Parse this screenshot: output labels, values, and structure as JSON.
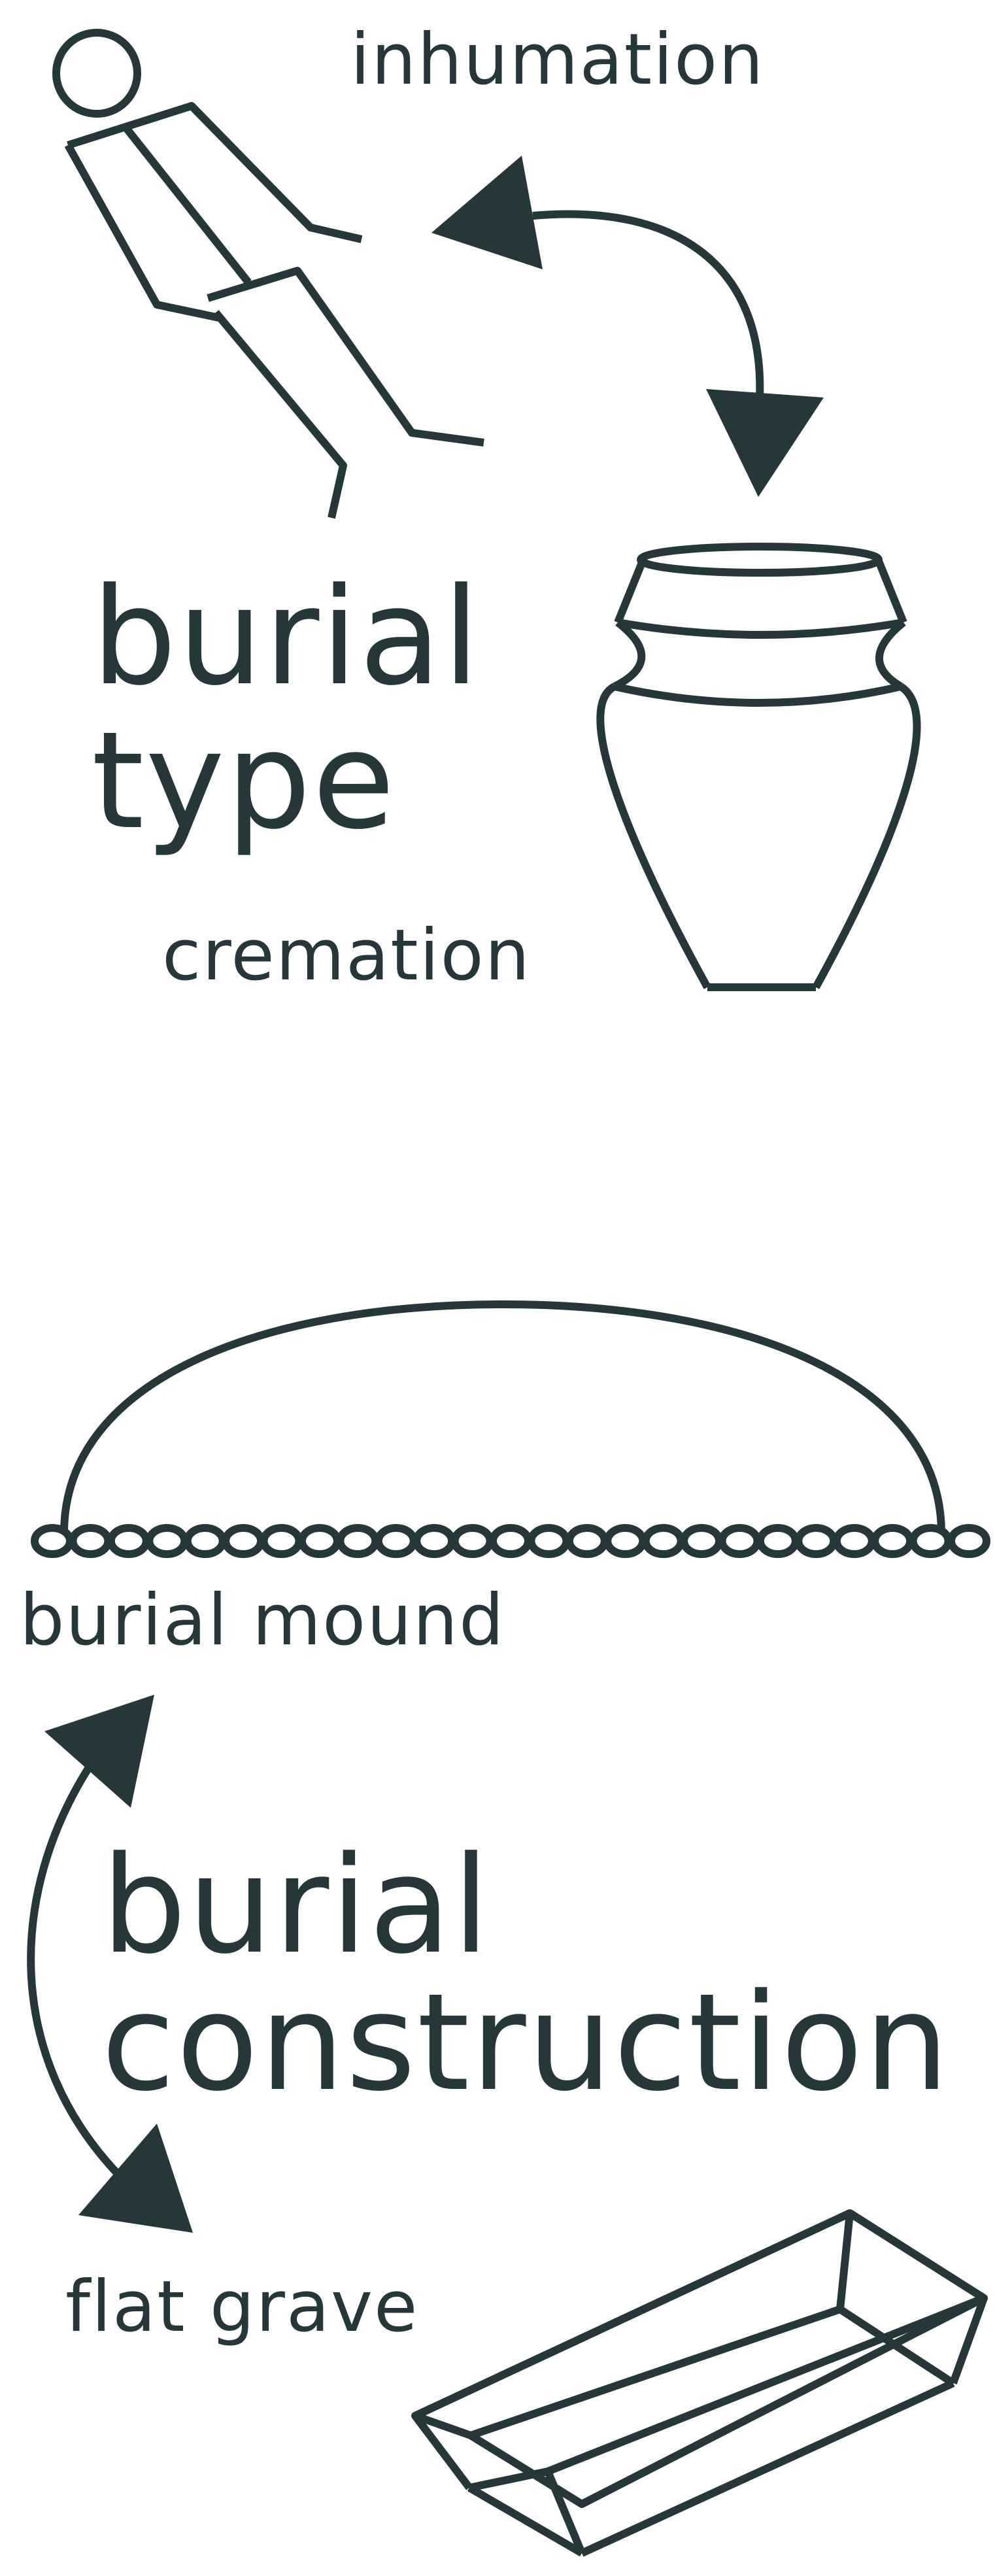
{
  "colors": {
    "ink": "#253739",
    "background": "#ffffff"
  },
  "burial_type": {
    "heading_line1": "burial",
    "heading_line2": "type",
    "option_inhumation": "inhumation",
    "option_cremation": "cremation",
    "icons": [
      "stick-figure-icon",
      "cremation-urn-icon",
      "double-arrow-icon"
    ]
  },
  "burial_construction": {
    "heading_line1": "burial",
    "heading_line2": "construction",
    "option_mound": "burial mound",
    "option_flat": "flat grave",
    "icons": [
      "burial-mound-icon",
      "flat-grave-icon",
      "double-arrow-icon"
    ]
  }
}
